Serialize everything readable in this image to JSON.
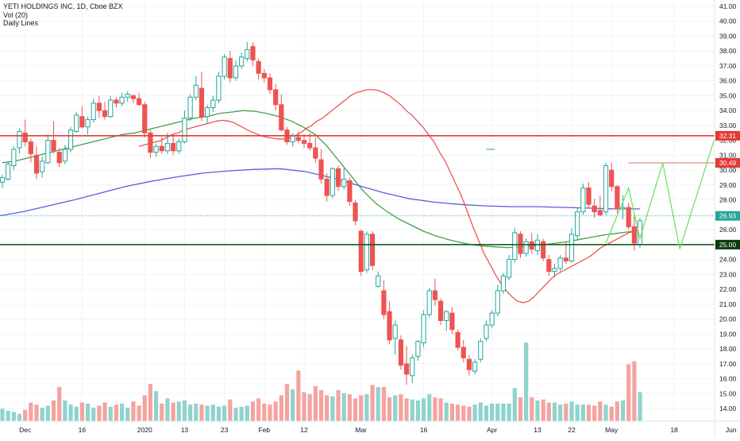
{
  "legend": {
    "symbol": "YETI HOLDINGS INC, 1D, Cboe BZX",
    "volume": "Vol (20)",
    "lines": "Daily Lines"
  },
  "colors": {
    "up": "#26a69a",
    "down": "#ef5350",
    "vol_up": "#8fd3cd",
    "vol_down": "#f4a3a0",
    "resistance": "#e53935",
    "support": "#1b5e20",
    "ma200": "#5c5fd6",
    "ma50": "#43a047",
    "ma20": "#ef5350",
    "pattern": "#66e05a",
    "last": "#26a69a"
  },
  "chart_data": {
    "type": "candlestick",
    "title": "YETI HOLDINGS INC, 1D, Cboe BZX",
    "ylim": [
      13.3,
      41.5
    ],
    "y_ticks": [
      "14.00",
      "15.00",
      "16.00",
      "17.00",
      "18.00",
      "19.00",
      "20.00",
      "21.00",
      "22.00",
      "23.00",
      "24.00",
      "25.00",
      "26.00",
      "27.00",
      "28.00",
      "29.00",
      "30.00",
      "31.00",
      "32.00",
      "33.00",
      "34.00",
      "35.00",
      "36.00",
      "37.00",
      "38.00",
      "39.00",
      "40.00",
      "41.00"
    ],
    "x_ticks": [
      "Dec",
      "16",
      "2020",
      "13",
      "23",
      "Feb",
      "12",
      "Mar",
      "16",
      "Apr",
      "13",
      "22",
      "May",
      "18",
      "Jun"
    ],
    "horizontal_lines": [
      {
        "label": "32.31",
        "value": 32.31,
        "style": "resistance"
      },
      {
        "label": "30.49",
        "value": 30.49,
        "style": "target"
      },
      {
        "label": "26.93",
        "value": 26.93,
        "style": "last"
      },
      {
        "label": "25.00",
        "value": 25.0,
        "style": "support"
      }
    ],
    "candles": [
      [
        29.2,
        29.7,
        28.8,
        29.5
      ],
      [
        29.4,
        30.6,
        29.3,
        30.4
      ],
      [
        30.3,
        31.6,
        30.0,
        31.4
      ],
      [
        31.5,
        32.8,
        31.1,
        32.6
      ],
      [
        32.5,
        33.4,
        31.6,
        31.9
      ],
      [
        31.9,
        32.1,
        30.5,
        31.1
      ],
      [
        31.0,
        31.6,
        29.4,
        29.8
      ],
      [
        29.9,
        30.9,
        29.5,
        30.6
      ],
      [
        30.5,
        32.4,
        30.4,
        32.0
      ],
      [
        32.0,
        33.3,
        31.1,
        31.3
      ],
      [
        31.2,
        31.5,
        30.2,
        30.5
      ],
      [
        30.6,
        31.7,
        30.4,
        31.4
      ],
      [
        31.4,
        32.9,
        31.2,
        32.7
      ],
      [
        32.6,
        33.9,
        32.5,
        33.7
      ],
      [
        33.6,
        34.3,
        32.8,
        32.9
      ],
      [
        32.9,
        33.6,
        32.4,
        33.4
      ],
      [
        33.4,
        34.8,
        33.2,
        34.5
      ],
      [
        34.5,
        35.0,
        33.5,
        34.0
      ],
      [
        34.0,
        34.6,
        33.4,
        33.6
      ],
      [
        33.6,
        35.0,
        33.5,
        34.7
      ],
      [
        34.7,
        34.9,
        34.2,
        34.5
      ],
      [
        34.5,
        35.2,
        34.3,
        34.9
      ],
      [
        34.9,
        35.3,
        34.6,
        35.1
      ],
      [
        35.0,
        35.1,
        34.5,
        34.8
      ],
      [
        34.8,
        35.2,
        34.3,
        34.4
      ],
      [
        34.4,
        34.6,
        32.2,
        32.5
      ],
      [
        32.5,
        32.7,
        30.8,
        31.2
      ],
      [
        31.2,
        31.8,
        30.9,
        31.6
      ],
      [
        31.6,
        32.2,
        31.1,
        31.3
      ],
      [
        31.3,
        32.5,
        31.1,
        31.8
      ],
      [
        31.8,
        32.4,
        31.0,
        31.3
      ],
      [
        31.3,
        32.1,
        31.1,
        31.9
      ],
      [
        31.9,
        34.0,
        31.8,
        33.5
      ],
      [
        33.5,
        35.1,
        33.3,
        34.9
      ],
      [
        34.9,
        36.3,
        34.7,
        35.7
      ],
      [
        35.5,
        36.6,
        33.3,
        33.6
      ],
      [
        33.6,
        34.4,
        33.1,
        34.2
      ],
      [
        34.2,
        35.0,
        33.9,
        34.7
      ],
      [
        34.7,
        36.6,
        34.5,
        36.3
      ],
      [
        36.3,
        37.8,
        36.1,
        37.6
      ],
      [
        37.5,
        38.0,
        35.9,
        36.2
      ],
      [
        36.2,
        37.4,
        36.0,
        37.0
      ],
      [
        37.0,
        37.9,
        36.8,
        37.6
      ],
      [
        37.5,
        38.6,
        37.3,
        38.1
      ],
      [
        38.3,
        38.6,
        37.0,
        37.4
      ],
      [
        37.3,
        37.5,
        36.1,
        36.5
      ],
      [
        36.5,
        36.8,
        35.9,
        36.2
      ],
      [
        36.2,
        36.5,
        35.1,
        35.4
      ],
      [
        35.4,
        35.8,
        34.0,
        34.4
      ],
      [
        34.4,
        35.1,
        32.6,
        32.7
      ],
      [
        32.7,
        32.9,
        31.7,
        31.9
      ],
      [
        31.9,
        32.5,
        31.6,
        32.3
      ],
      [
        32.2,
        32.6,
        31.8,
        32.0
      ],
      [
        32.0,
        32.4,
        31.5,
        31.8
      ],
      [
        31.8,
        32.5,
        31.3,
        31.5
      ],
      [
        31.5,
        32.2,
        30.5,
        30.8
      ],
      [
        30.7,
        31.4,
        29.1,
        29.4
      ],
      [
        29.4,
        29.8,
        27.9,
        28.3
      ],
      [
        28.3,
        30.2,
        28.1,
        30.1
      ],
      [
        30.1,
        30.3,
        28.6,
        28.9
      ],
      [
        28.9,
        30.2,
        28.7,
        29.4
      ],
      [
        29.3,
        29.5,
        27.6,
        27.9
      ],
      [
        27.8,
        28.0,
        26.3,
        26.6
      ],
      [
        25.9,
        26.0,
        22.9,
        23.2
      ],
      [
        23.3,
        25.9,
        23.1,
        25.7
      ],
      [
        25.7,
        25.9,
        23.3,
        23.6
      ],
      [
        22.2,
        23.2,
        22.1,
        22.9
      ],
      [
        21.9,
        22.6,
        20.0,
        20.3
      ],
      [
        20.5,
        21.2,
        18.3,
        18.6
      ],
      [
        18.7,
        19.9,
        17.6,
        19.6
      ],
      [
        18.6,
        18.9,
        16.6,
        16.9
      ],
      [
        17.0,
        18.2,
        15.6,
        16.3
      ],
      [
        16.2,
        17.6,
        15.7,
        17.4
      ],
      [
        17.5,
        18.6,
        17.2,
        18.5
      ],
      [
        18.4,
        20.6,
        18.1,
        20.3
      ],
      [
        20.3,
        22.1,
        20.1,
        21.9
      ],
      [
        21.9,
        22.7,
        20.9,
        21.3
      ],
      [
        21.2,
        21.4,
        19.6,
        19.9
      ],
      [
        19.9,
        20.6,
        19.2,
        20.5
      ],
      [
        20.4,
        20.8,
        19.0,
        19.3
      ],
      [
        19.1,
        19.3,
        17.9,
        18.1
      ],
      [
        18.1,
        18.6,
        17.1,
        17.4
      ],
      [
        17.3,
        17.6,
        16.2,
        16.6
      ],
      [
        16.5,
        17.3,
        16.3,
        17.1
      ],
      [
        17.3,
        18.7,
        17.1,
        18.5
      ],
      [
        18.7,
        19.9,
        18.5,
        19.6
      ],
      [
        19.6,
        20.6,
        19.4,
        20.4
      ],
      [
        20.4,
        22.3,
        20.2,
        21.9
      ],
      [
        21.9,
        23.1,
        21.7,
        22.9
      ],
      [
        22.8,
        24.3,
        22.6,
        24.0
      ],
      [
        24.0,
        26.1,
        23.8,
        25.8
      ],
      [
        25.7,
        25.9,
        24.1,
        24.4
      ],
      [
        24.4,
        25.4,
        24.2,
        25.2
      ],
      [
        25.2,
        25.8,
        24.4,
        24.7
      ],
      [
        24.6,
        25.7,
        24.3,
        25.3
      ],
      [
        25.2,
        25.4,
        23.9,
        24.1
      ],
      [
        24.0,
        24.3,
        22.9,
        23.2
      ],
      [
        23.2,
        23.7,
        22.8,
        23.4
      ],
      [
        23.4,
        24.3,
        23.2,
        24.1
      ],
      [
        24.1,
        25.2,
        23.7,
        23.9
      ],
      [
        23.9,
        26.1,
        23.8,
        25.7
      ],
      [
        25.6,
        27.5,
        25.3,
        27.2
      ],
      [
        27.2,
        29.1,
        27.0,
        28.8
      ],
      [
        28.8,
        29.2,
        27.5,
        27.7
      ],
      [
        27.6,
        28.1,
        26.8,
        27.2
      ],
      [
        27.3,
        28.3,
        26.9,
        27.0
      ],
      [
        27.2,
        30.5,
        27.0,
        30.3
      ],
      [
        30.0,
        30.5,
        28.6,
        28.9
      ],
      [
        28.9,
        29.0,
        27.1,
        27.4
      ],
      [
        27.4,
        28.3,
        26.7,
        27.5
      ],
      [
        27.5,
        27.8,
        26.0,
        26.2
      ],
      [
        26.2,
        26.9,
        24.6,
        25.1
      ],
      [
        25.0,
        26.8,
        24.8,
        26.6
      ]
    ],
    "volume_values": [
      1.2,
      1.0,
      0.9,
      0.7,
      1.1,
      1.8,
      1.6,
      1.3,
      1.5,
      2.0,
      3.3,
      2.0,
      1.6,
      1.4,
      1.8,
      1.7,
      1.3,
      1.5,
      1.8,
      1.4,
      1.6,
      1.7,
      1.3,
      1.9,
      1.5,
      2.5,
      3.6,
      2.9,
      1.7,
      2.2,
      1.8,
      1.9,
      2.0,
      1.6,
      1.7,
      1.6,
      1.5,
      1.6,
      1.4,
      1.5,
      2.1,
      1.3,
      1.4,
      1.5,
      1.9,
      2.2,
      1.7,
      1.6,
      1.9,
      2.5,
      3.6,
      3.1,
      4.9,
      2.8,
      2.6,
      3.4,
      3.0,
      2.5,
      2.4,
      3.0,
      2.7,
      2.6,
      2.2,
      2.5,
      2.6,
      3.5,
      3.3,
      3.3,
      2.3,
      2.5,
      2.6,
      2.2,
      2.1,
      2.0,
      2.2,
      2.6,
      2.3,
      2.2,
      1.8,
      1.7,
      1.6,
      1.5,
      1.4,
      1.6,
      1.8,
      1.5,
      1.7,
      1.7,
      1.7,
      1.7,
      3.2,
      2.3,
      7.6,
      2.3,
      2.0,
      2.1,
      1.8,
      1.8,
      1.6,
      1.7,
      1.9,
      1.6,
      1.6,
      1.6,
      1.5,
      1.9,
      1.6,
      1.4,
      1.9,
      2.0,
      5.5,
      5.8,
      2.8,
      4.0,
      2.2
    ],
    "ma20": [
      31.6,
      31.7,
      31.8,
      31.9,
      32.0,
      32.2,
      32.4,
      32.5,
      32.7,
      32.8,
      32.9,
      33.0,
      33.1,
      33.2,
      33.3,
      33.35,
      33.3,
      33.2,
      33.0,
      32.8,
      32.6,
      32.45,
      32.3,
      32.2,
      32.15,
      32.1,
      32.1,
      32.15,
      32.3,
      32.5,
      32.8,
      33.0,
      33.3,
      33.5,
      33.8,
      34.1,
      34.4,
      34.7,
      35.0,
      35.2,
      35.3,
      35.4,
      35.4,
      35.35,
      35.2,
      35.0,
      34.7,
      34.4,
      34.0,
      33.7,
      33.3,
      32.9,
      32.4,
      31.9,
      31.2,
      30.6,
      29.8,
      29.0,
      28.2,
      27.2,
      26.2,
      25.3,
      24.4,
      23.7,
      23.0,
      22.4,
      21.9,
      21.5,
      21.2,
      21.1,
      21.2,
      21.5,
      21.9,
      22.3,
      22.7,
      23.0,
      23.2,
      23.4,
      23.6,
      23.8,
      24.0,
      24.2,
      24.5,
      24.8,
      25.0,
      25.2,
      25.4,
      25.6,
      25.8,
      25.9,
      26.0
    ],
    "ma50": [
      30.5,
      30.6,
      30.8,
      31.0,
      31.2,
      31.4,
      31.6,
      31.8,
      32.0,
      32.2,
      32.4,
      32.5,
      32.7,
      32.9,
      33.1,
      33.3,
      33.5,
      33.6,
      33.8,
      33.9,
      34.0,
      33.95,
      33.8,
      33.6,
      33.3,
      32.9,
      32.4,
      31.6,
      30.6,
      29.6,
      28.6,
      27.8,
      27.2,
      26.7,
      26.3,
      25.9,
      25.6,
      25.35,
      25.15,
      25.0,
      24.9,
      24.85,
      24.8,
      24.85,
      24.9,
      25.0,
      25.1,
      25.2,
      25.35,
      25.5,
      25.65,
      25.75,
      25.85,
      25.95
    ],
    "ma200": [
      26.9,
      27.2,
      27.6,
      28.0,
      28.45,
      28.9,
      29.25,
      29.55,
      29.8,
      29.95,
      30.05,
      30.1,
      29.9,
      29.5,
      29.0,
      28.5,
      28.1,
      27.85,
      27.7,
      27.6,
      27.55,
      27.55,
      27.5,
      27.45,
      27.4,
      27.4
    ],
    "pattern_polyline": [
      [
        25.1,
        "start"
      ],
      [
        28.8,
        "peak1"
      ],
      [
        25.4,
        "low1"
      ],
      [
        30.49,
        "peak2"
      ],
      [
        24.7,
        "low2"
      ],
      [
        32.0,
        "proj"
      ]
    ]
  }
}
